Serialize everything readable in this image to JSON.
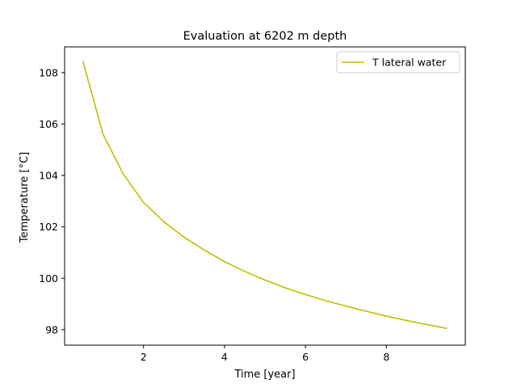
{
  "chart_data": {
    "type": "line",
    "title": "Evaluation at 6202 m depth",
    "xlabel": "Time [year]",
    "ylabel": "Temperature [°C]",
    "xlim": [
      0.05,
      9.95
    ],
    "ylim": [
      97.4,
      109.0
    ],
    "xticks": [
      2,
      4,
      6,
      8
    ],
    "xtick_labels": [
      "2",
      "4",
      "6",
      "8"
    ],
    "yticks": [
      98,
      100,
      102,
      104,
      106,
      108
    ],
    "ytick_labels": [
      "98",
      "100",
      "102",
      "104",
      "106",
      "108"
    ],
    "grid": false,
    "legend_position": "top-right",
    "series": [
      {
        "name": "T lateral water",
        "color": "#bfbf00",
        "x": [
          0.5,
          1.0,
          1.5,
          2.0,
          2.5,
          3.0,
          3.5,
          4.0,
          4.5,
          5.0,
          5.5,
          6.0,
          6.5,
          7.0,
          7.5,
          8.0,
          8.5,
          9.0,
          9.5
        ],
        "y": [
          108.45,
          105.6,
          104.05,
          102.95,
          102.2,
          101.6,
          101.1,
          100.65,
          100.27,
          99.93,
          99.63,
          99.37,
          99.13,
          98.92,
          98.72,
          98.53,
          98.36,
          98.2,
          98.05
        ]
      }
    ]
  }
}
